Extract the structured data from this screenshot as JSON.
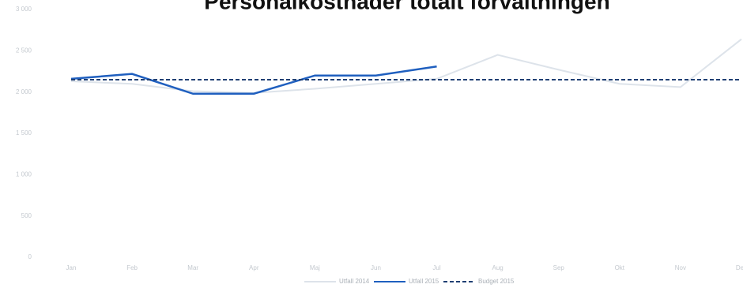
{
  "chart_data": {
    "type": "line",
    "title": "Personalkostnader totalt förvaltningen",
    "categories": [
      "Jan",
      "Feb",
      "Mar",
      "Apr",
      "Maj",
      "Jun",
      "Jul",
      "Aug",
      "Sep",
      "Okt",
      "Nov",
      "Dec"
    ],
    "series": [
      {
        "name": "Utfall 2014",
        "color": "#dde3ea",
        "dash": false,
        "values": [
          2130,
          2100,
          2010,
          1990,
          2040,
          2100,
          2160,
          2450,
          2270,
          2100,
          2060,
          2640
        ]
      },
      {
        "name": "Utfall 2015",
        "color": "#1f5fbf",
        "dash": false,
        "values": [
          2160,
          2220,
          1980,
          1980,
          2200,
          2200,
          2310,
          null,
          null,
          null,
          null,
          null
        ]
      },
      {
        "name": "Budget 2015",
        "color": "#1f3f73",
        "dash": true,
        "values": [
          2150,
          2150,
          2150,
          2150,
          2150,
          2150,
          2150,
          2150,
          2150,
          2150,
          2150,
          2150
        ]
      }
    ],
    "ylim": [
      0,
      3000
    ],
    "yticks": [
      0,
      500,
      {
        "value": 1000,
        "label": "1 000"
      },
      {
        "value": 1500,
        "label": "1 500"
      },
      {
        "value": 2000,
        "label": "2 000"
      },
      {
        "value": 2500,
        "label": "2 500"
      },
      {
        "value": 3000,
        "label": "3 000"
      }
    ],
    "grid": false
  }
}
